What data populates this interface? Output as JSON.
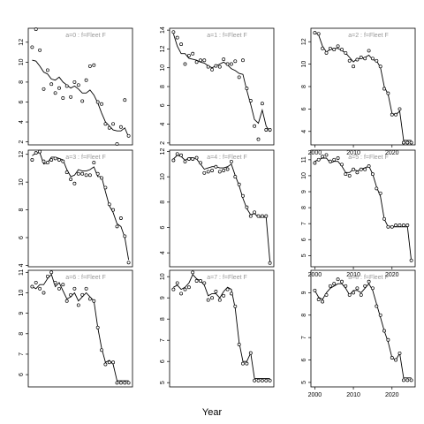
{
  "figure": {
    "xlabel": "Year"
  },
  "chart_data": [
    {
      "type": "line",
      "label": "a=0 : f=Fleet F",
      "xlim": [
        1999,
        2026
      ],
      "ylim": [
        1.7,
        13.4
      ],
      "yticks": [
        2,
        4,
        6,
        8,
        10,
        12
      ],
      "xticks": [],
      "show_x_tick_labels": false,
      "x": [
        2000,
        2001,
        2002,
        2003,
        2004,
        2005,
        2006,
        2007,
        2008,
        2009,
        2010,
        2011,
        2012,
        2013,
        2014,
        2015,
        2016,
        2017,
        2018,
        2019,
        2020,
        2021,
        2022,
        2023,
        2024,
        2025
      ],
      "observed": [
        11.5,
        13.3,
        11.2,
        7.3,
        9.2,
        7.8,
        6.9,
        7.4,
        6.4,
        7.6,
        6.5,
        8.0,
        7.7,
        6.1,
        8.2,
        9.6,
        9.7,
        6.0,
        5.8,
        3.8,
        3.4,
        3.8,
        1.8,
        3.5,
        6.2,
        2.6
      ],
      "fitted": [
        10.2,
        10.1,
        9.6,
        9.0,
        8.8,
        8.3,
        8.2,
        8.5,
        8.0,
        7.7,
        7.4,
        7.6,
        7.3,
        6.9,
        6.9,
        7.2,
        6.7,
        5.9,
        4.9,
        4.0,
        3.6,
        3.2,
        3.1,
        3.1,
        3.4,
        2.5
      ]
    },
    {
      "type": "line",
      "label": "a=3 : f=Fleet F",
      "xlim": [
        1999,
        2026
      ],
      "ylim": [
        3.9,
        12.3
      ],
      "yticks": [
        4,
        6,
        8,
        10,
        12
      ],
      "xticks": [],
      "show_x_tick_labels": false,
      "x": [
        2000,
        2001,
        2002,
        2003,
        2004,
        2005,
        2006,
        2007,
        2008,
        2009,
        2010,
        2011,
        2012,
        2013,
        2014,
        2015,
        2016,
        2017,
        2018,
        2019,
        2020,
        2021,
        2022,
        2023,
        2024,
        2025
      ],
      "observed": [
        11.6,
        12.1,
        12.2,
        11.5,
        11.4,
        11.6,
        11.7,
        11.6,
        11.5,
        10.7,
        10.2,
        9.9,
        10.6,
        10.6,
        10.5,
        10.5,
        11.4,
        10.6,
        10.3,
        9.6,
        8.4,
        8.0,
        6.8,
        7.4,
        6.1,
        4.2
      ],
      "fitted": [
        11.9,
        12.1,
        12.1,
        11.3,
        11.4,
        11.8,
        11.8,
        11.7,
        11.6,
        10.9,
        10.4,
        10.5,
        10.9,
        10.8,
        10.8,
        10.9,
        11.1,
        10.4,
        10.4,
        9.3,
        8.3,
        7.8,
        7.0,
        6.8,
        6.0,
        4.4
      ]
    },
    {
      "type": "line",
      "label": "a=6 : f=Fleet F",
      "xlim": [
        1999,
        2026
      ],
      "ylim": [
        5.4,
        11.1
      ],
      "yticks": [
        6,
        7,
        8,
        9,
        10,
        11
      ],
      "xticks": [],
      "show_x_tick_labels": false,
      "x": [
        2000,
        2001,
        2002,
        2003,
        2004,
        2005,
        2006,
        2007,
        2008,
        2009,
        2010,
        2011,
        2012,
        2013,
        2014,
        2015,
        2016,
        2017,
        2018,
        2019,
        2020,
        2021,
        2022,
        2023,
        2024,
        2025
      ],
      "observed": [
        10.3,
        10.5,
        10.2,
        10.0,
        10.8,
        11.0,
        10.5,
        10.2,
        10.4,
        9.6,
        9.9,
        10.2,
        9.4,
        9.9,
        10.2,
        9.7,
        9.6,
        8.3,
        7.2,
        6.5,
        6.6,
        6.6,
        5.6,
        5.6,
        5.6,
        5.6
      ],
      "fitted": [
        10.3,
        10.2,
        10.4,
        10.4,
        10.7,
        10.9,
        10.3,
        10.5,
        10.1,
        9.7,
        9.8,
        10.0,
        9.6,
        9.8,
        10.0,
        9.8,
        9.6,
        8.3,
        7.3,
        6.6,
        6.7,
        6.5,
        5.7,
        5.7,
        5.7,
        5.7
      ]
    },
    {
      "type": "line",
      "label": "a=1 : f=Fleet F",
      "xlim": [
        1999,
        2026
      ],
      "ylim": [
        1.8,
        14.2
      ],
      "yticks": [
        2,
        4,
        6,
        8,
        10,
        12,
        14
      ],
      "xticks": [],
      "show_x_tick_labels": false,
      "x": [
        2000,
        2001,
        2002,
        2003,
        2004,
        2005,
        2006,
        2007,
        2008,
        2009,
        2010,
        2011,
        2012,
        2013,
        2014,
        2015,
        2016,
        2017,
        2018,
        2019,
        2020,
        2021,
        2022,
        2023,
        2024,
        2025
      ],
      "observed": [
        13.8,
        13.2,
        12.5,
        10.4,
        11.3,
        11.5,
        10.6,
        10.8,
        10.8,
        10.1,
        9.8,
        10.2,
        10.1,
        10.9,
        10.4,
        10.4,
        10.7,
        9.0,
        10.8,
        7.8,
        6.5,
        3.8,
        2.4,
        6.2,
        3.4,
        3.4
      ],
      "fitted": [
        13.6,
        12.3,
        11.5,
        11.5,
        11.0,
        10.9,
        10.8,
        10.6,
        10.5,
        10.2,
        10.0,
        10.2,
        10.4,
        10.6,
        10.3,
        9.9,
        9.7,
        9.4,
        9.3,
        7.6,
        6.1,
        4.5,
        4.1,
        5.5,
        3.8,
        3.2
      ]
    },
    {
      "type": "line",
      "label": "a=4 : f=Fleet F",
      "xlim": [
        1999,
        2026
      ],
      "ylim": [
        2.9,
        12.1
      ],
      "yticks": [
        4,
        6,
        8,
        10,
        12
      ],
      "xticks": [],
      "show_x_tick_labels": false,
      "x": [
        2000,
        2001,
        2002,
        2003,
        2004,
        2005,
        2006,
        2007,
        2008,
        2009,
        2010,
        2011,
        2012,
        2013,
        2014,
        2015,
        2016,
        2017,
        2018,
        2019,
        2020,
        2021,
        2022,
        2023,
        2024,
        2025
      ],
      "observed": [
        11.3,
        11.8,
        11.7,
        11.2,
        11.4,
        11.4,
        11.5,
        11.1,
        10.3,
        10.4,
        10.5,
        10.8,
        10.4,
        10.5,
        10.6,
        11.2,
        10.0,
        9.4,
        8.5,
        7.6,
        6.9,
        7.2,
        6.9,
        6.9,
        6.9,
        3.2
      ],
      "fitted": [
        11.4,
        11.7,
        11.6,
        11.3,
        11.5,
        11.5,
        11.4,
        11.0,
        10.6,
        10.7,
        10.8,
        10.8,
        10.7,
        10.7,
        10.8,
        11.0,
        10.1,
        9.3,
        8.3,
        7.5,
        7.0,
        7.1,
        6.8,
        6.8,
        6.8,
        3.3
      ]
    },
    {
      "type": "line",
      "label": "a=7 : f=Fleet F",
      "xlim": [
        1999,
        2026
      ],
      "ylim": [
        4.8,
        10.3
      ],
      "yticks": [
        5,
        6,
        7,
        8,
        9,
        10
      ],
      "xticks": [],
      "show_x_tick_labels": false,
      "x": [
        2000,
        2001,
        2002,
        2003,
        2004,
        2005,
        2006,
        2007,
        2008,
        2009,
        2010,
        2011,
        2012,
        2013,
        2014,
        2015,
        2016,
        2017,
        2018,
        2019,
        2020,
        2021,
        2022,
        2023,
        2024,
        2025
      ],
      "observed": [
        9.4,
        9.7,
        9.2,
        9.4,
        9.5,
        10.2,
        9.8,
        9.8,
        9.7,
        8.9,
        9.0,
        9.3,
        8.9,
        9.1,
        9.4,
        9.2,
        8.6,
        6.8,
        5.9,
        5.9,
        6.4,
        5.1,
        5.1,
        5.1,
        5.1,
        5.1
      ],
      "fitted": [
        9.5,
        9.6,
        9.4,
        9.5,
        9.7,
        10.1,
        9.9,
        9.8,
        9.6,
        9.1,
        9.2,
        9.2,
        9.0,
        9.3,
        9.5,
        9.4,
        8.5,
        6.9,
        6.0,
        6.0,
        6.4,
        5.2,
        5.2,
        5.2,
        5.2,
        5.2
      ]
    },
    {
      "type": "line",
      "label": "a=2 : f=Fleet F",
      "xlim": [
        1999,
        2026
      ],
      "ylim": [
        2.8,
        13.2
      ],
      "yticks": [
        4,
        6,
        8,
        10,
        12
      ],
      "xticks": [
        2000,
        2010,
        2020
      ],
      "show_x_tick_labels": true,
      "x": [
        2000,
        2001,
        2002,
        2003,
        2004,
        2005,
        2006,
        2007,
        2008,
        2009,
        2010,
        2011,
        2012,
        2013,
        2014,
        2015,
        2016,
        2017,
        2018,
        2019,
        2020,
        2021,
        2022,
        2023,
        2024,
        2025
      ],
      "observed": [
        12.8,
        12.7,
        11.4,
        11.0,
        11.4,
        11.3,
        11.6,
        11.3,
        11.0,
        10.3,
        9.8,
        10.4,
        10.6,
        10.5,
        11.2,
        10.5,
        10.3,
        9.8,
        7.8,
        7.4,
        5.5,
        5.5,
        6.0,
        3.0,
        3.0,
        3.0
      ],
      "fitted": [
        12.9,
        12.6,
        11.6,
        11.1,
        11.3,
        11.4,
        11.4,
        11.2,
        11.0,
        10.6,
        10.2,
        10.5,
        10.5,
        10.6,
        10.8,
        10.4,
        10.3,
        9.7,
        8.0,
        7.3,
        5.6,
        5.5,
        5.8,
        3.2,
        3.2,
        3.2
      ]
    },
    {
      "type": "line",
      "label": "a=5 : f=Fleet F",
      "xlim": [
        1999,
        2026
      ],
      "ylim": [
        4.3,
        11.6
      ],
      "yticks": [
        5,
        6,
        7,
        8,
        9,
        10,
        11
      ],
      "xticks": [
        2000,
        2010,
        2020
      ],
      "show_x_tick_labels": true,
      "x": [
        2000,
        2001,
        2002,
        2003,
        2004,
        2005,
        2006,
        2007,
        2008,
        2009,
        2010,
        2011,
        2012,
        2013,
        2014,
        2015,
        2016,
        2017,
        2018,
        2019,
        2020,
        2021,
        2022,
        2023,
        2024,
        2025
      ],
      "observed": [
        10.8,
        11.0,
        11.2,
        11.3,
        10.9,
        11.0,
        11.1,
        10.7,
        10.1,
        10.0,
        10.4,
        10.2,
        10.4,
        10.4,
        10.6,
        10.1,
        9.2,
        8.9,
        7.3,
        6.8,
        6.8,
        6.9,
        6.9,
        6.9,
        6.9,
        4.7
      ],
      "fitted": [
        10.9,
        11.0,
        11.1,
        11.1,
        10.8,
        10.9,
        10.9,
        10.6,
        10.2,
        10.2,
        10.4,
        10.3,
        10.4,
        10.5,
        10.6,
        10.1,
        9.3,
        8.7,
        7.3,
        6.8,
        6.8,
        6.8,
        6.8,
        6.8,
        6.8,
        4.7
      ]
    },
    {
      "type": "line",
      "label": "a=8 : f=Fleet F",
      "xlim": [
        1999,
        2026
      ],
      "ylim": [
        4.8,
        10.0
      ],
      "yticks": [
        5,
        6,
        7,
        8,
        9
      ],
      "xticks": [
        2000,
        2010,
        2020
      ],
      "show_x_tick_labels": true,
      "x": [
        2000,
        2001,
        2002,
        2003,
        2004,
        2005,
        2006,
        2007,
        2008,
        2009,
        2010,
        2011,
        2012,
        2013,
        2014,
        2015,
        2016,
        2017,
        2018,
        2019,
        2020,
        2021,
        2022,
        2023,
        2024,
        2025
      ],
      "observed": [
        9.1,
        8.7,
        8.6,
        8.9,
        9.3,
        9.4,
        9.6,
        9.5,
        9.3,
        8.9,
        9.0,
        9.2,
        8.9,
        9.3,
        9.5,
        9.2,
        8.4,
        8.0,
        7.3,
        6.9,
        6.1,
        6.0,
        6.3,
        5.1,
        5.1,
        5.1
      ],
      "fitted": [
        9.1,
        8.8,
        8.7,
        9.0,
        9.2,
        9.3,
        9.4,
        9.4,
        9.2,
        8.9,
        9.1,
        9.1,
        9.0,
        9.2,
        9.4,
        9.1,
        8.5,
        7.9,
        7.3,
        6.8,
        6.1,
        6.0,
        6.3,
        5.2,
        5.2,
        5.2
      ]
    }
  ]
}
